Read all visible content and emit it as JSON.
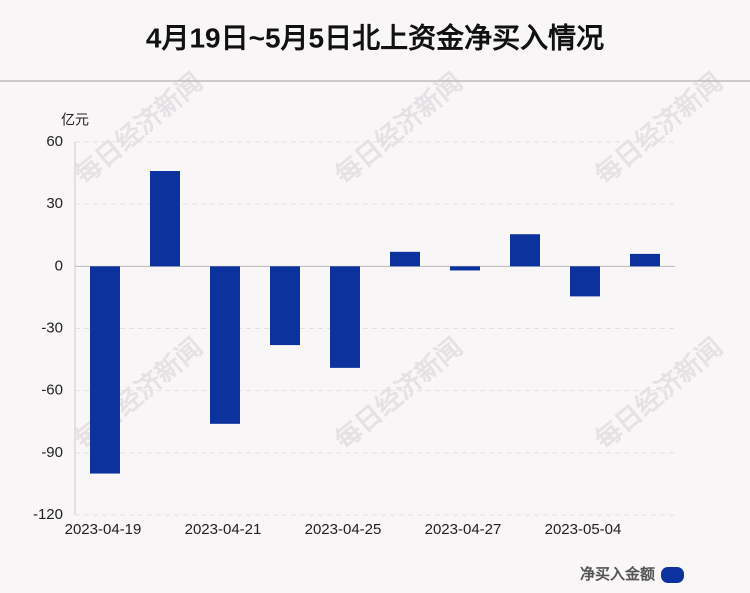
{
  "chart_data": {
    "type": "bar",
    "title": "4月19日~5月5日北上资金净买入情况",
    "y_label": "亿元",
    "watermark": "每日经济新闻",
    "categories": [
      "2023-04-19",
      null,
      "2023-04-21",
      null,
      "2023-04-25",
      null,
      "2023-04-27",
      null,
      "2023-05-04",
      null
    ],
    "series": [
      {
        "name": "净买入金额",
        "color": "#0c329e",
        "values": [
          -100,
          46,
          -76,
          -38,
          -49,
          7,
          -2,
          15.5,
          -14.5,
          6
        ]
      }
    ],
    "ylim": [
      -120,
      60
    ],
    "yticks": [
      -120,
      -90,
      -60,
      -30,
      0,
      30,
      60
    ],
    "grid": true,
    "legend": "bottom-right"
  }
}
